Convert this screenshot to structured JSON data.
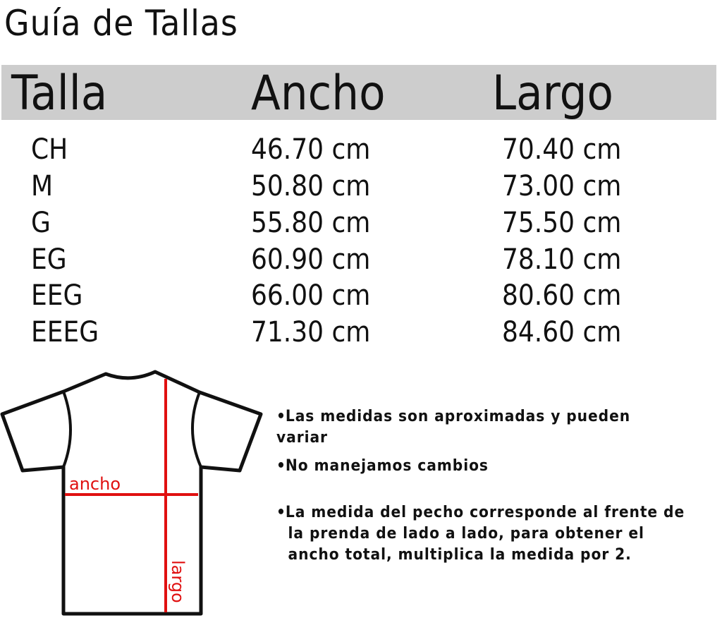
{
  "title": "Guía de Tallas",
  "table": {
    "headers": [
      "Talla",
      "Ancho",
      "Largo"
    ],
    "rows": [
      [
        "CH",
        "46.70 cm",
        "70.40 cm"
      ],
      [
        "M",
        "50.80 cm",
        "73.00 cm"
      ],
      [
        "G",
        "55.80 cm",
        "75.50 cm"
      ],
      [
        "EG",
        "60.90 cm",
        "78.10 cm"
      ],
      [
        "EEG",
        "66.00 cm",
        "80.60 cm"
      ],
      [
        "EEEG",
        "71.30 cm",
        "84.60 cm"
      ]
    ],
    "header_bg": "#cdcdcd"
  },
  "diagram": {
    "width_label": "ancho",
    "length_label": "largo",
    "accent_color": "#e01010"
  },
  "notes": [
    {
      "bullet": "•",
      "lines": [
        "Las medidas son aproximadas y pueden variar"
      ]
    },
    {
      "bullet": "•",
      "lines": [
        "No manejamos cambios"
      ]
    },
    {
      "bullet": "•",
      "lines": [
        "La medida del pecho corresponde al frente de",
        "la prenda de lado a lado, para obtener el",
        "ancho total, multiplica la medida por 2."
      ]
    }
  ]
}
